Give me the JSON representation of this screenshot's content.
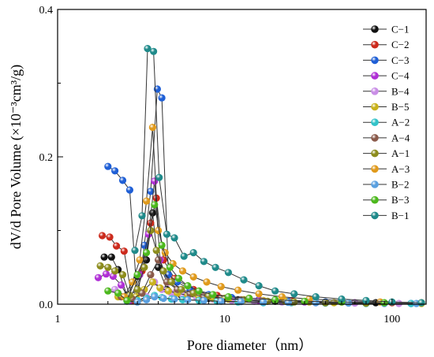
{
  "chart_data": {
    "type": "scatter",
    "xlabel": "Pore diameter（nm）",
    "ylabel": "dV/d Pore Volume (×10⁻³cm³/g)",
    "xscale": "log",
    "xlim": [
      1,
      160
    ],
    "ylim": [
      0,
      0.4
    ],
    "x_ticks": [
      1,
      10,
      100
    ],
    "x_tick_labels": [
      "1",
      "10",
      "100"
    ],
    "y_ticks": [
      0,
      0.2,
      0.4
    ],
    "y_tick_labels": [
      "0.0",
      "0.2",
      "0.4"
    ],
    "legend_position": "top-right",
    "series": [
      {
        "name": "C−1",
        "color": "#111111",
        "x": [
          1.9,
          2.1,
          2.3,
          2.6,
          3.0,
          3.4,
          3.7,
          4.0,
          4.5,
          5.5,
          8,
          12,
          20,
          40,
          80
        ],
        "y": [
          0.064,
          0.064,
          0.047,
          0.012,
          0.038,
          0.06,
          0.124,
          0.05,
          0.02,
          0.012,
          0.008,
          0.006,
          0.004,
          0.003,
          0.002
        ]
      },
      {
        "name": "C−2",
        "color": "#cc2a1c",
        "x": [
          1.85,
          2.05,
          2.25,
          2.5,
          2.8,
          3.2,
          3.6,
          3.9,
          4.3,
          5.0,
          6.5,
          9,
          14,
          25,
          50,
          100
        ],
        "y": [
          0.093,
          0.091,
          0.079,
          0.072,
          0.005,
          0.045,
          0.11,
          0.144,
          0.06,
          0.035,
          0.02,
          0.012,
          0.008,
          0.005,
          0.003,
          0.002
        ]
      },
      {
        "name": "C−3",
        "color": "#1f5fd6",
        "x": [
          2.0,
          2.2,
          2.45,
          2.7,
          3.0,
          3.3,
          3.6,
          3.95,
          4.2,
          4.6,
          5.2,
          6.2,
          8,
          11,
          16,
          24,
          40,
          70,
          130
        ],
        "y": [
          0.187,
          0.181,
          0.168,
          0.155,
          0.005,
          0.08,
          0.153,
          0.292,
          0.28,
          0.04,
          0.03,
          0.02,
          0.013,
          0.009,
          0.006,
          0.004,
          0.003,
          0.002,
          0.001
        ]
      },
      {
        "name": "C−4",
        "color": "#b02fd6",
        "x": [
          1.75,
          1.95,
          2.15,
          2.4,
          2.7,
          3.1,
          3.5,
          3.8,
          4.1,
          4.6,
          5.5,
          7,
          10,
          16,
          30,
          60
        ],
        "y": [
          0.036,
          0.041,
          0.038,
          0.026,
          0.005,
          0.04,
          0.095,
          0.167,
          0.06,
          0.03,
          0.018,
          0.012,
          0.008,
          0.005,
          0.003,
          0.002
        ]
      },
      {
        "name": "B−4",
        "color": "#c98ee6",
        "x": [
          2.2,
          2.6,
          3.0,
          3.4,
          3.8,
          4.2,
          4.8,
          5.6,
          6.8,
          8.5,
          11,
          15,
          22,
          35,
          60,
          110
        ],
        "y": [
          0.02,
          0.01,
          0.005,
          0.01,
          0.03,
          0.02,
          0.015,
          0.012,
          0.009,
          0.007,
          0.005,
          0.004,
          0.003,
          0.002,
          0.0015,
          0.001
        ]
      },
      {
        "name": "B−5",
        "color": "#c9b21c",
        "x": [
          2.3,
          2.6,
          2.95,
          3.3,
          3.7,
          4.1,
          4.6,
          5.2,
          6.0,
          7.0,
          8.5,
          10.5,
          13,
          17,
          23,
          32,
          45,
          70,
          150
        ],
        "y": [
          0.01,
          0.006,
          0.01,
          0.02,
          0.03,
          0.022,
          0.018,
          0.015,
          0.012,
          0.01,
          0.008,
          0.007,
          0.006,
          0.005,
          0.004,
          0.003,
          0.002,
          0.0015,
          0.001
        ]
      },
      {
        "name": "A−2",
        "color": "#33c3c9",
        "x": [
          3.0,
          3.4,
          3.8,
          4.2,
          4.8,
          5.6,
          7,
          9,
          12,
          17,
          25,
          40,
          70,
          130
        ],
        "y": [
          0.005,
          0.008,
          0.012,
          0.009,
          0.007,
          0.006,
          0.005,
          0.004,
          0.003,
          0.002,
          0.002,
          0.0015,
          0.001,
          0.001
        ]
      },
      {
        "name": "A−4",
        "color": "#8a5a4a",
        "x": [
          2.4,
          2.8,
          3.2,
          3.6,
          4.0,
          4.5,
          5.2,
          6.2,
          7.5,
          9.5,
          12.5,
          17,
          25,
          40,
          70
        ],
        "y": [
          0.01,
          0.007,
          0.015,
          0.04,
          0.06,
          0.03,
          0.02,
          0.014,
          0.01,
          0.008,
          0.006,
          0.004,
          0.003,
          0.002,
          0.0015
        ]
      },
      {
        "name": "A−1",
        "color": "#8c8c1c",
        "x": [
          1.8,
          2.0,
          2.2,
          2.45,
          2.7,
          3.0,
          3.3,
          3.6,
          3.9,
          4.3,
          4.8,
          5.5,
          6.5,
          8,
          10,
          13,
          18,
          26,
          40,
          70
        ],
        "y": [
          0.052,
          0.05,
          0.045,
          0.04,
          0.012,
          0.02,
          0.05,
          0.1,
          0.073,
          0.045,
          0.03,
          0.02,
          0.015,
          0.011,
          0.008,
          0.006,
          0.004,
          0.003,
          0.002,
          0.0015
        ]
      },
      {
        "name": "A−3",
        "color": "#e09a1c",
        "x": [
          2.5,
          2.8,
          3.1,
          3.4,
          3.7,
          4.0,
          4.4,
          4.9,
          5.6,
          6.5,
          7.8,
          9.5,
          12,
          16,
          22,
          32,
          50,
          85,
          150
        ],
        "y": [
          0.01,
          0.03,
          0.06,
          0.14,
          0.24,
          0.1,
          0.07,
          0.055,
          0.045,
          0.037,
          0.03,
          0.024,
          0.019,
          0.014,
          0.01,
          0.007,
          0.005,
          0.003,
          0.002
        ]
      },
      {
        "name": "B−2",
        "color": "#5aa0e0",
        "x": [
          2.6,
          3.0,
          3.4,
          3.8,
          4.3,
          5.0,
          6.0,
          7.5,
          9.5,
          12.5,
          17,
          24,
          35,
          55,
          90,
          140
        ],
        "y": [
          0.004,
          0.003,
          0.006,
          0.01,
          0.008,
          0.007,
          0.006,
          0.005,
          0.004,
          0.0035,
          0.003,
          0.0025,
          0.002,
          0.0015,
          0.001,
          0.001
        ]
      },
      {
        "name": "B−3",
        "color": "#4cb81c",
        "x": [
          2.0,
          2.3,
          2.6,
          3.0,
          3.4,
          3.8,
          4.2,
          4.7,
          5.3,
          6.0,
          7.0,
          8.5,
          10.5,
          14,
          20,
          30,
          50,
          90
        ],
        "y": [
          0.018,
          0.015,
          0.005,
          0.04,
          0.07,
          0.135,
          0.08,
          0.05,
          0.035,
          0.025,
          0.018,
          0.013,
          0.01,
          0.008,
          0.006,
          0.004,
          0.003,
          0.002
        ]
      },
      {
        "name": "B−1",
        "color": "#1f8a8a",
        "x": [
          2.9,
          3.2,
          3.45,
          3.75,
          4.05,
          4.5,
          5.0,
          5.7,
          6.5,
          7.5,
          8.8,
          10.5,
          13,
          16,
          20,
          26,
          35,
          50,
          70,
          100,
          150
        ],
        "y": [
          0.073,
          0.12,
          0.347,
          0.343,
          0.172,
          0.095,
          0.09,
          0.065,
          0.07,
          0.058,
          0.05,
          0.043,
          0.033,
          0.025,
          0.018,
          0.014,
          0.01,
          0.007,
          0.005,
          0.003,
          0.002
        ]
      }
    ]
  }
}
